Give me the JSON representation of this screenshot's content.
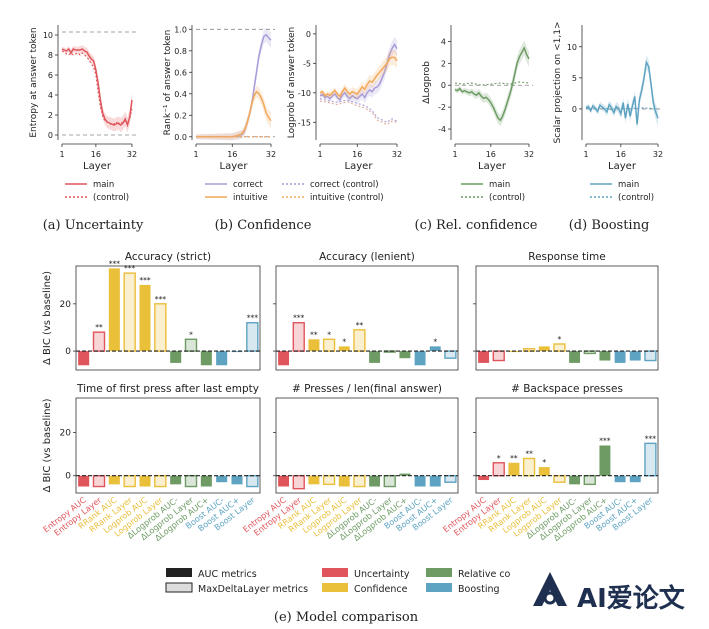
{
  "palette": {
    "uncertainty": "#e0555b",
    "confidence": "#eabf3a",
    "relative": "#6d9b63",
    "boosting": "#5ea4c2",
    "correct": "#a99bd9",
    "intuitive": "#f2a95a",
    "control_line": "#e3a79c"
  },
  "captions": {
    "a": "(a) Uncertainty",
    "b": "(b) Confidence",
    "c": "(c) Rel. confidence",
    "d": "(d) Boosting",
    "e": "(e) Model comparison"
  },
  "top_panels": [
    {
      "id": "entropy",
      "ylabel": "Entropy at answer token",
      "xlabel": "Layer",
      "xticks": [
        "1",
        "16",
        "32"
      ],
      "yticks": [
        "0",
        "2",
        "4",
        "6",
        "8",
        "10"
      ],
      "ylim": [
        -0.5,
        11
      ],
      "hlines": [
        0,
        10.3
      ],
      "series": [
        {
          "name": "main",
          "color": "#e0555b",
          "dash": false,
          "x": [
            1,
            2,
            3,
            4,
            5,
            6,
            7,
            8,
            9,
            10,
            11,
            12,
            13,
            14,
            15,
            16,
            17,
            18,
            19,
            20,
            21,
            22,
            23,
            24,
            25,
            26,
            27,
            28,
            29,
            30,
            31,
            32
          ],
          "y": [
            8.6,
            8.5,
            8.4,
            8.6,
            8.2,
            8.6,
            8.5,
            8.5,
            8.5,
            8.6,
            8.4,
            8.3,
            7.9,
            7.6,
            7.4,
            6.5,
            5.2,
            3.5,
            2.2,
            1.6,
            1.3,
            1.2,
            1.1,
            1.0,
            1.1,
            1.2,
            1.0,
            1.2,
            1.6,
            1.0,
            1.8,
            3.5
          ]
        },
        {
          "name": "(control)",
          "color": "#e0555b",
          "dash": true,
          "x": [
            1,
            2,
            3,
            4,
            5,
            6,
            7,
            8,
            9,
            10,
            11,
            12,
            13,
            14,
            15,
            16,
            17,
            18,
            19,
            20,
            21,
            22,
            23,
            24,
            25,
            26,
            27,
            28,
            29,
            30,
            31,
            32
          ],
          "y": [
            8.4,
            8.3,
            8.1,
            8.0,
            8.2,
            8.0,
            8.1,
            8.2,
            8.0,
            8.2,
            8.0,
            7.8,
            7.5,
            7.1,
            6.8,
            6.0,
            4.3,
            2.8,
            1.9,
            1.4,
            1.3,
            1.2,
            1.0,
            1.1,
            1.3,
            1.0,
            1.3,
            1.2,
            1.4,
            1.3,
            1.6,
            2.6
          ]
        }
      ],
      "legend": [
        "main",
        "(control)"
      ]
    },
    {
      "id": "rank",
      "ylabel": "Rank⁻¹ of answer token",
      "xlabel": "Layer",
      "xticks": [
        "1",
        "16",
        "32"
      ],
      "yticks": [
        "0.0",
        "0.2",
        "0.4",
        "0.6",
        "0.8",
        "1.0"
      ],
      "ylim": [
        -0.03,
        1.04
      ],
      "hlines": [
        0,
        1
      ],
      "series": [
        {
          "name": "correct",
          "color": "#a99bd9",
          "dash": false,
          "x": [
            1,
            4,
            8,
            12,
            16,
            18,
            20,
            21,
            22,
            23,
            24,
            25,
            26,
            27,
            28,
            29,
            30,
            31,
            32
          ],
          "y": [
            0,
            0,
            0,
            0,
            0,
            0.01,
            0.02,
            0.05,
            0.12,
            0.2,
            0.3,
            0.45,
            0.6,
            0.75,
            0.85,
            0.93,
            0.95,
            0.92,
            0.9
          ]
        },
        {
          "name": "intuitive",
          "color": "#f2a95a",
          "dash": false,
          "x": [
            1,
            4,
            8,
            12,
            16,
            18,
            20,
            21,
            22,
            23,
            24,
            25,
            26,
            27,
            28,
            29,
            30,
            31,
            32
          ],
          "y": [
            0,
            0,
            0,
            0,
            0,
            0.01,
            0.03,
            0.06,
            0.12,
            0.2,
            0.3,
            0.38,
            0.42,
            0.4,
            0.36,
            0.3,
            0.22,
            0.18,
            0.15
          ]
        },
        {
          "name": "correct (control)",
          "color": "#a99bd9",
          "dash": true,
          "x": [
            1,
            8,
            16,
            24,
            32
          ],
          "y": [
            0,
            0,
            0,
            0,
            0
          ]
        },
        {
          "name": "intuitive (control)",
          "color": "#f2a95a",
          "dash": true,
          "x": [
            1,
            8,
            16,
            24,
            32
          ],
          "y": [
            0,
            0,
            0,
            0,
            0
          ]
        }
      ]
    },
    {
      "id": "logprob",
      "ylabel": "Logprob of answer token",
      "xlabel": "Layer",
      "xticks": [
        "1",
        "16",
        "32"
      ],
      "yticks": [
        "-15",
        "-10",
        "-5",
        "0"
      ],
      "ylim": [
        -18,
        1.5
      ],
      "hlines": [],
      "series": [
        {
          "name": "correct",
          "color": "#a99bd9",
          "dash": false,
          "x": [
            1,
            2,
            3,
            4,
            5,
            6,
            7,
            8,
            9,
            10,
            11,
            12,
            13,
            14,
            15,
            16,
            17,
            18,
            19,
            20,
            21,
            22,
            23,
            24,
            25,
            26,
            27,
            28,
            29,
            30,
            31,
            32
          ],
          "y": [
            -10.5,
            -10.3,
            -10.8,
            -10.6,
            -11.0,
            -10.5,
            -10.2,
            -10.8,
            -11.2,
            -10.4,
            -10.0,
            -10.6,
            -11.0,
            -10.5,
            -10.8,
            -11.0,
            -10.6,
            -10.2,
            -10.8,
            -10.0,
            -9.5,
            -9.8,
            -9.2,
            -9.0,
            -8.5,
            -7.5,
            -6.5,
            -5.0,
            -3.5,
            -2.5,
            -1.8,
            -2.5
          ]
        },
        {
          "name": "intuitive",
          "color": "#f2a95a",
          "dash": false,
          "x": [
            1,
            2,
            3,
            4,
            5,
            6,
            7,
            8,
            9,
            10,
            11,
            12,
            13,
            14,
            15,
            16,
            17,
            18,
            19,
            20,
            21,
            22,
            23,
            24,
            25,
            26,
            27,
            28,
            29,
            30,
            31,
            32
          ],
          "y": [
            -10.0,
            -9.8,
            -10.5,
            -10.2,
            -10.4,
            -10.0,
            -9.6,
            -10.2,
            -10.6,
            -9.8,
            -9.2,
            -9.8,
            -10.2,
            -9.8,
            -10.0,
            -10.2,
            -9.6,
            -9.0,
            -9.4,
            -8.6,
            -8.0,
            -8.2,
            -7.6,
            -7.0,
            -6.5,
            -6.0,
            -5.5,
            -5.0,
            -4.2,
            -4.0,
            -4.0,
            -4.6
          ]
        },
        {
          "name": "correct (control)",
          "color": "#a99bd9",
          "dash": true,
          "x": [
            1,
            4,
            8,
            12,
            16,
            18,
            20,
            22,
            24,
            26,
            28,
            30,
            32
          ],
          "y": [
            -11.0,
            -11.3,
            -11.6,
            -11.2,
            -11.8,
            -12.0,
            -12.4,
            -13.0,
            -14.2,
            -14.6,
            -15.0,
            -14.4,
            -14.8
          ]
        },
        {
          "name": "intuitive (control)",
          "color": "#e3a79c",
          "dash": true,
          "x": [
            1,
            4,
            8,
            12,
            16,
            18,
            20,
            22,
            24,
            26,
            28,
            30,
            32
          ],
          "y": [
            -11.4,
            -11.6,
            -12.0,
            -11.5,
            -12.2,
            -12.4,
            -12.8,
            -13.4,
            -14.6,
            -15.0,
            -15.4,
            -14.8,
            -15.0
          ]
        }
      ]
    },
    {
      "id": "dlogprob",
      "ylabel": "ΔLogprob",
      "xlabel": "Layer",
      "xticks": [
        "1",
        "16",
        "32"
      ],
      "yticks": [
        "-4",
        "-2",
        "0",
        "2",
        "4"
      ],
      "ylim": [
        -5,
        5.5
      ],
      "hlines": [
        0
      ],
      "series": [
        {
          "name": "main",
          "color": "#6d9b63",
          "dash": false,
          "x": [
            1,
            2,
            3,
            4,
            5,
            6,
            7,
            8,
            9,
            10,
            11,
            12,
            13,
            14,
            15,
            16,
            17,
            18,
            19,
            20,
            21,
            22,
            23,
            24,
            25,
            26,
            27,
            28,
            29,
            30,
            31,
            32
          ],
          "y": [
            -0.4,
            -0.5,
            -0.3,
            -0.6,
            -0.5,
            -0.6,
            -0.7,
            -0.6,
            -0.8,
            -0.9,
            -0.7,
            -1.0,
            -1.2,
            -1.1,
            -1.3,
            -1.6,
            -2.0,
            -2.5,
            -3.0,
            -3.2,
            -2.8,
            -2.2,
            -1.5,
            -0.8,
            0.0,
            1.0,
            2.0,
            2.6,
            3.0,
            3.4,
            2.8,
            2.4
          ]
        },
        {
          "name": "(control)",
          "color": "#6d9b63",
          "dash": true,
          "x": [
            1,
            4,
            8,
            12,
            16,
            20,
            24,
            28,
            32
          ],
          "y": [
            0.2,
            0.1,
            0.2,
            0.0,
            0.1,
            0.2,
            0.1,
            0.3,
            0.2
          ]
        }
      ],
      "legend": [
        "main",
        "(control)"
      ]
    },
    {
      "id": "boost",
      "ylabel": "Scalar projection on <1,1>",
      "xlabel": "Layer",
      "xticks": [
        "1",
        "16",
        "32"
      ],
      "yticks": [
        "0",
        "5",
        "10"
      ],
      "ylim": [
        -5,
        13.5
      ],
      "hlines": [
        0
      ],
      "series": [
        {
          "name": "main",
          "color": "#5ea4c2",
          "dash": false,
          "x": [
            1,
            2,
            3,
            4,
            5,
            6,
            7,
            8,
            9,
            10,
            11,
            12,
            13,
            14,
            15,
            16,
            17,
            18,
            19,
            20,
            21,
            22,
            23,
            24,
            25,
            26,
            27,
            28,
            29,
            30,
            31,
            32
          ],
          "y": [
            0.2,
            0.4,
            -0.3,
            0.5,
            0.1,
            -0.4,
            0.6,
            0.3,
            0.0,
            -0.5,
            0.7,
            0.2,
            -0.6,
            0.4,
            0.1,
            -0.8,
            1.0,
            -1.5,
            0.8,
            -1.2,
            0.5,
            2.0,
            -2.5,
            1.5,
            3.0,
            5.0,
            7.5,
            6.8,
            4.0,
            1.0,
            -0.5,
            -1.5
          ]
        },
        {
          "name": "(control)",
          "color": "#5ea4c2",
          "dash": true,
          "x": [
            1,
            4,
            8,
            12,
            16,
            20,
            24,
            28,
            32
          ],
          "y": [
            0.1,
            0.0,
            0.2,
            -0.1,
            0.1,
            0.0,
            0.2,
            0.1,
            0.0
          ]
        }
      ],
      "legend": [
        "main",
        "(control)"
      ]
    }
  ],
  "chart_data": {
    "type": "bar",
    "ylabel": "Δ BIC (vs baseline)",
    "ylim": [
      -8,
      36
    ],
    "yticks": [
      "0",
      "20"
    ],
    "categories": [
      "Entropy AUC",
      "Entropy Layer",
      "RRank AUC",
      "RRank Layer",
      "Logprob AUC",
      "Logprob Layer",
      "ΔLogprob AUC-",
      "ΔLogprob Layer",
      "ΔLogprob AUC+",
      "Boost AUC-",
      "Boost AUC+",
      "Boost Layer"
    ],
    "category_groups": [
      "uncertainty",
      "uncertainty",
      "confidence",
      "confidence",
      "confidence",
      "confidence",
      "relative",
      "relative",
      "relative",
      "boosting",
      "boosting",
      "boosting"
    ],
    "category_kind": [
      "auc",
      "layer",
      "auc",
      "layer",
      "auc",
      "layer",
      "auc",
      "layer",
      "auc",
      "auc",
      "auc",
      "layer"
    ],
    "subplots": [
      {
        "title": "Accuracy (strict)",
        "values": [
          -6,
          8,
          35,
          33,
          28,
          20,
          -5,
          5,
          -6,
          -6,
          0,
          12
        ],
        "stars": [
          "",
          "**",
          "***",
          "***",
          "***",
          "***",
          "",
          "*",
          "",
          "",
          "",
          "***"
        ]
      },
      {
        "title": "Accuracy (lenient)",
        "values": [
          -6,
          12,
          5,
          5,
          2,
          9,
          -5,
          0,
          -3,
          -6,
          2,
          -3
        ],
        "stars": [
          "",
          "***",
          "**",
          "*",
          "*",
          "**",
          "",
          "",
          "",
          "",
          "*",
          ""
        ]
      },
      {
        "title": "Response time",
        "values": [
          -5,
          -4,
          0,
          1,
          2,
          3,
          -5,
          -1,
          -4,
          -5,
          -4,
          -4
        ],
        "stars": [
          "",
          "",
          "",
          "",
          "",
          "*",
          "",
          "",
          "",
          "",
          "",
          ""
        ]
      },
      {
        "title": "Time of first press after last empty",
        "values": [
          -5,
          -5,
          -4,
          -5,
          -5,
          -5,
          -4,
          -5,
          -5,
          -3,
          -4,
          -5
        ],
        "stars": [
          "",
          "",
          "",
          "",
          "",
          "",
          "",
          "",
          "",
          "",
          "",
          ""
        ]
      },
      {
        "title": "# Presses / len(final answer)",
        "values": [
          -5,
          -6,
          -4,
          -4,
          -5,
          -5,
          -5,
          -5,
          1,
          -5,
          -5,
          -3
        ],
        "stars": [
          "",
          "",
          "",
          "",
          "",
          "",
          "",
          "",
          "",
          "",
          "",
          ""
        ]
      },
      {
        "title": "# Backspace presses",
        "values": [
          -2,
          6,
          6,
          8,
          4,
          -3,
          -4,
          -4,
          14,
          -3,
          -3,
          15
        ],
        "stars": [
          "",
          "*",
          "**",
          "**",
          "*",
          "",
          "",
          "",
          "***",
          "",
          "",
          "***"
        ]
      }
    ],
    "legend": {
      "metric_types": [
        "AUC metrics",
        "MaxDeltaLayer metrics"
      ],
      "groups": [
        {
          "label": "Uncertainty",
          "key": "uncertainty"
        },
        {
          "label": "Confidence",
          "key": "confidence"
        },
        {
          "label": "Relative co",
          "key": "relative"
        },
        {
          "label": "Boosting",
          "key": "boosting"
        }
      ]
    }
  },
  "watermark": {
    "text": "AI爱论文"
  }
}
